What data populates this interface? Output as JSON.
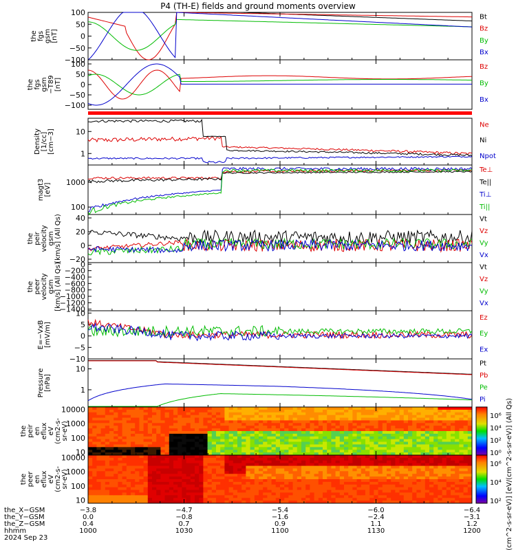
{
  "chart_data": {
    "type": "line",
    "title": "P4 (TH-E) fields and ground moments overview",
    "time_range": [
      "1000",
      "1200"
    ],
    "panels": [
      {
        "id": "fgs_gsm",
        "ylabel": [
          "the",
          "fgs",
          "gsm",
          "[nT]"
        ],
        "yticks": [
          "100",
          "50",
          "0",
          "−50",
          "−100"
        ],
        "ylim": [
          -100,
          100
        ],
        "legend": [
          {
            "name": "Bt",
            "color": "#000000"
          },
          {
            "name": "Bz",
            "color": "#dd0000"
          },
          {
            "name": "By",
            "color": "#00bb00"
          },
          {
            "name": "Bx",
            "color": "#0000cc"
          }
        ]
      },
      {
        "id": "fgs_gsm_t89",
        "ylabel": [
          "the",
          "fgs",
          "gsm",
          "−T89",
          "[nT]"
        ],
        "yticks": [
          "100",
          "50",
          "0",
          "−50",
          "−100"
        ],
        "ylim": [
          -120,
          120
        ],
        "legend": [
          {
            "name": "Bz",
            "color": "#dd0000"
          },
          {
            "name": "By",
            "color": "#00bb00"
          },
          {
            "name": "Bx",
            "color": "#0000cc"
          }
        ]
      },
      {
        "id": "density",
        "ylabel": [
          "Density",
          "[1/cc]",
          "[cm−3]"
        ],
        "yticks": [
          "10",
          "1"
        ],
        "ylim": [
          0.3,
          40
        ],
        "scale": "log",
        "legend": [
          {
            "name": "Ne",
            "color": "#dd0000"
          },
          {
            "name": "Ni",
            "color": "#000000"
          },
          {
            "name": "Npot",
            "color": "#0000cc"
          }
        ]
      },
      {
        "id": "temperature",
        "ylabel": [
          "magt3",
          "[eV]"
        ],
        "yticks": [
          "1000",
          "100"
        ],
        "ylim": [
          50,
          5000
        ],
        "scale": "log",
        "legend": [
          {
            "name": "Te⊥",
            "color": "#dd0000"
          },
          {
            "name": "Te||",
            "color": "#000000"
          },
          {
            "name": "Ti⊥",
            "color": "#0000cc"
          },
          {
            "name": "Ti||",
            "color": "#00bb00"
          }
        ]
      },
      {
        "id": "peir_velocity",
        "ylabel": [
          "the",
          "peir",
          "velocity",
          "gsm",
          "[km/s] (All Qs)"
        ],
        "yticks": [
          "40",
          "20",
          "0",
          "−20"
        ],
        "ylim": [
          -25,
          45
        ],
        "legend": [
          {
            "name": "Vt",
            "color": "#000000"
          },
          {
            "name": "Vz",
            "color": "#dd0000"
          },
          {
            "name": "Vy",
            "color": "#00bb00"
          },
          {
            "name": "Vx",
            "color": "#0000cc"
          }
        ]
      },
      {
        "id": "peer_velocity",
        "ylabel": [
          "the",
          "peer",
          "velocity",
          "gsm",
          "[km/s] (All Qs)"
        ],
        "yticks": [
          "0",
          "−200",
          "−400",
          "−600",
          "−800",
          "−1000",
          "−1200",
          "−1400"
        ],
        "ylim": [
          -1450,
          50
        ],
        "legend": [
          {
            "name": "Vt",
            "color": "#000000"
          },
          {
            "name": "Vz",
            "color": "#dd0000"
          },
          {
            "name": "Vy",
            "color": "#00bb00"
          },
          {
            "name": "Vx",
            "color": "#0000cc"
          }
        ]
      },
      {
        "id": "e_field",
        "ylabel": [
          "E=−VxB",
          "[mV/m]"
        ],
        "yticks": [
          "10",
          "5",
          "0",
          "−5",
          "−10"
        ],
        "ylim": [
          -10,
          11
        ],
        "legend": [
          {
            "name": "Ez",
            "color": "#dd0000"
          },
          {
            "name": "Ey",
            "color": "#00bb00"
          },
          {
            "name": "Ex",
            "color": "#0000cc"
          }
        ]
      },
      {
        "id": "pressure",
        "ylabel": [
          "Pressure",
          "[nPa]"
        ],
        "yticks": [
          "10",
          "1"
        ],
        "ylim": [
          0.15,
          30
        ],
        "scale": "log",
        "legend": [
          {
            "name": "Pt",
            "color": "#000000"
          },
          {
            "name": "Pb",
            "color": "#dd0000"
          },
          {
            "name": "Pe",
            "color": "#00bb00"
          },
          {
            "name": "Pi",
            "color": "#0000cc"
          }
        ]
      },
      {
        "id": "peir_eflux",
        "ylabel": [
          "the",
          "peir",
          "en",
          "eflux",
          "eV",
          "(cm2-s-",
          "sr-eV)"
        ],
        "yticks": [
          "10000",
          "1000",
          "100",
          "10"
        ],
        "ylim": [
          6,
          15000
        ],
        "scale": "log",
        "colorbar_ticks": [
          "10⁶",
          "10⁴",
          "10²",
          "10⁰"
        ]
      },
      {
        "id": "peer_eflux",
        "ylabel": [
          "the",
          "peer",
          "en",
          "eflux",
          "eV",
          "(cm2-s-",
          "sr-eV)"
        ],
        "yticks": [
          "10000",
          "1000",
          "100",
          "10"
        ],
        "ylim": [
          6,
          15000
        ],
        "scale": "log",
        "colorbar_ticks": [
          "10⁶",
          "10⁴",
          "10²"
        ]
      }
    ],
    "colorbar_label": "[eV/(cm^2-s-sr-eV)] [eV/(cm^2-s-sr-eV)] (All Qs)",
    "x_axis_rows": [
      {
        "label": "the_X−GSM",
        "values": [
          "−3.8",
          "−4.7",
          "−5.4",
          "−6.0",
          "−6.4"
        ]
      },
      {
        "label": "the_Y−GSM",
        "values": [
          "0.0",
          "−0.8",
          "−1.6",
          "−2.4",
          "−3.1"
        ]
      },
      {
        "label": "the_Z−GSM",
        "values": [
          "0.4",
          "0.7",
          "0.9",
          "1.1",
          "1.2"
        ]
      },
      {
        "label": "hhmm",
        "values": [
          "1000",
          "1030",
          "1100",
          "1130",
          "1200"
        ]
      }
    ],
    "date_label": "2024 Sep 23"
  }
}
